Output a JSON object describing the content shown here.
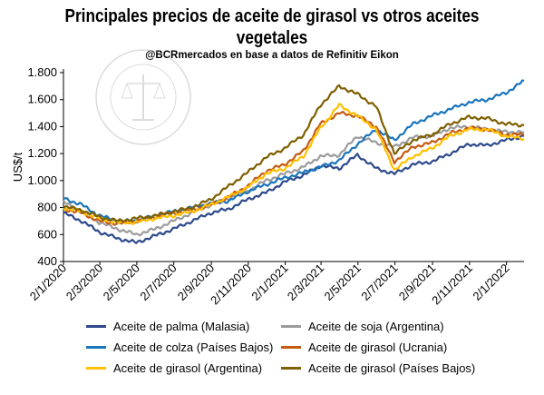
{
  "chart_data": {
    "type": "line",
    "title": "Principales precios de aceite de girasol vs otros aceites vegetales",
    "subtitle": "@BCRmercados en base a datos de Refinitiv Eikon",
    "ylabel": "US$/t",
    "xlabel": "",
    "ylim": [
      400,
      1800
    ],
    "yticks": [
      "400",
      "600",
      "800",
      "1.000",
      "1.200",
      "1.400",
      "1.600",
      "1.800"
    ],
    "xlim": [
      "2020-01-02",
      "2022-01-31"
    ],
    "xticks": [
      "2/1/2020",
      "2/3/2020",
      "2/5/2020",
      "2/7/2020",
      "2/9/2020",
      "2/11/2020",
      "2/1/2021",
      "2/3/2021",
      "2/5/2021",
      "2/7/2021",
      "2/9/2021",
      "2/11/2021",
      "2/1/2022"
    ],
    "x": [
      "2020-01-02",
      "2020-02-01",
      "2020-03-01",
      "2020-04-01",
      "2020-05-01",
      "2020-06-01",
      "2020-07-01",
      "2020-08-01",
      "2020-09-01",
      "2020-10-01",
      "2020-11-01",
      "2020-12-01",
      "2021-01-01",
      "2021-02-01",
      "2021-03-01",
      "2021-04-01",
      "2021-05-01",
      "2021-06-01",
      "2021-07-01",
      "2021-08-01",
      "2021-09-01",
      "2021-10-01",
      "2021-11-01",
      "2021-12-01",
      "2022-01-01",
      "2022-01-31"
    ],
    "series": [
      {
        "name": "Aceite de palma (Malasia)",
        "color": "#2E4A8C",
        "values": [
          760,
          700,
          620,
          570,
          540,
          590,
          640,
          700,
          760,
          790,
          860,
          910,
          990,
          1040,
          1110,
          1090,
          1190,
          1090,
          1050,
          1120,
          1140,
          1200,
          1270,
          1260,
          1300,
          1330
        ]
      },
      {
        "name": "Aceite de soja (Argentina)",
        "color": "#9B9B9B",
        "values": [
          840,
          770,
          690,
          640,
          600,
          640,
          700,
          760,
          820,
          870,
          920,
          1000,
          1050,
          1100,
          1180,
          1190,
          1330,
          1280,
          1250,
          1320,
          1330,
          1390,
          1400,
          1380,
          1360,
          1360
        ]
      },
      {
        "name": "Aceite de colza (Países Bajos)",
        "color": "#1B75BC",
        "values": [
          870,
          820,
          740,
          700,
          700,
          740,
          770,
          800,
          830,
          850,
          920,
          970,
          1020,
          1060,
          1100,
          1150,
          1270,
          1380,
          1300,
          1420,
          1480,
          1530,
          1580,
          1600,
          1650,
          1740
        ]
      },
      {
        "name": "Aceite de girasol (Ucrania)",
        "color": "#C55A11",
        "values": [
          790,
          760,
          700,
          680,
          700,
          730,
          760,
          780,
          820,
          880,
          960,
          1070,
          1120,
          1220,
          1420,
          1500,
          1480,
          1400,
          1140,
          1250,
          1280,
          1350,
          1390,
          1380,
          1340,
          1340
        ]
      },
      {
        "name": "Aceite de girasol (Argentina)",
        "color": "#FFC000",
        "values": [
          800,
          770,
          720,
          690,
          690,
          720,
          740,
          770,
          820,
          880,
          950,
          1050,
          1090,
          1180,
          1390,
          1560,
          1480,
          1380,
          1080,
          1180,
          1240,
          1330,
          1380,
          1380,
          1330,
          1310
        ]
      },
      {
        "name": "Aceite de girasol (Países Bajos)",
        "color": "#7F6000",
        "values": [
          810,
          780,
          730,
          700,
          720,
          740,
          770,
          800,
          860,
          960,
          1060,
          1170,
          1240,
          1340,
          1560,
          1700,
          1640,
          1550,
          1200,
          1300,
          1340,
          1420,
          1470,
          1460,
          1420,
          1410
        ]
      }
    ],
    "legend_position": "bottom",
    "grid": false
  }
}
